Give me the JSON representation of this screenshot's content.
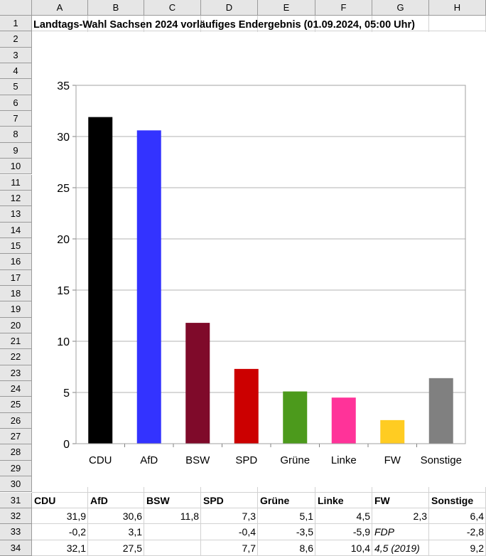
{
  "columns": [
    "A",
    "B",
    "C",
    "D",
    "E",
    "F",
    "G",
    "H"
  ],
  "rows": [
    "1",
    "2",
    "3",
    "4",
    "5",
    "6",
    "7",
    "8",
    "9",
    "10",
    "11",
    "12",
    "13",
    "14",
    "15",
    "16",
    "17",
    "18",
    "19",
    "20",
    "21",
    "22",
    "23",
    "24",
    "25",
    "26",
    "27",
    "28",
    "29",
    "30",
    "31",
    "32",
    "33",
    "34"
  ],
  "title": "Landtags-Wahl Sachsen 2024 vorläufiges Endergebnis (01.09.2024, 05:00 Uhr)",
  "table": {
    "header": [
      "CDU",
      "AfD",
      "BSW",
      "SPD",
      "Grüne",
      "Linke",
      "FW",
      "Sonstige"
    ],
    "row32": [
      "31,9",
      "30,6",
      "11,8",
      "7,3",
      "5,1",
      "4,5",
      "2,3",
      "6,4"
    ],
    "row33": [
      "-0,2",
      "3,1",
      "",
      "-0,4",
      "-3,5",
      "-5,9",
      "FDP",
      "-2,8"
    ],
    "row34": [
      "32,1",
      "27,5",
      "",
      "7,7",
      "8,6",
      "10,4",
      "4,5 (2019)",
      "9,2"
    ]
  },
  "chart_data": {
    "type": "bar",
    "categories": [
      "CDU",
      "AfD",
      "BSW",
      "SPD",
      "Grüne",
      "Linke",
      "FW",
      "Sonstige"
    ],
    "values": [
      31.9,
      30.6,
      11.8,
      7.3,
      5.1,
      4.5,
      2.3,
      6.4
    ],
    "colors": [
      "#000000",
      "#3333ff",
      "#7f0a2a",
      "#cc0000",
      "#4c9a1c",
      "#ff3399",
      "#ffcc22",
      "#808080"
    ],
    "yticks": [
      "0",
      "5",
      "10",
      "15",
      "20",
      "25",
      "30",
      "35"
    ],
    "ylim": [
      0,
      35
    ],
    "grid": true,
    "legend": "none"
  }
}
